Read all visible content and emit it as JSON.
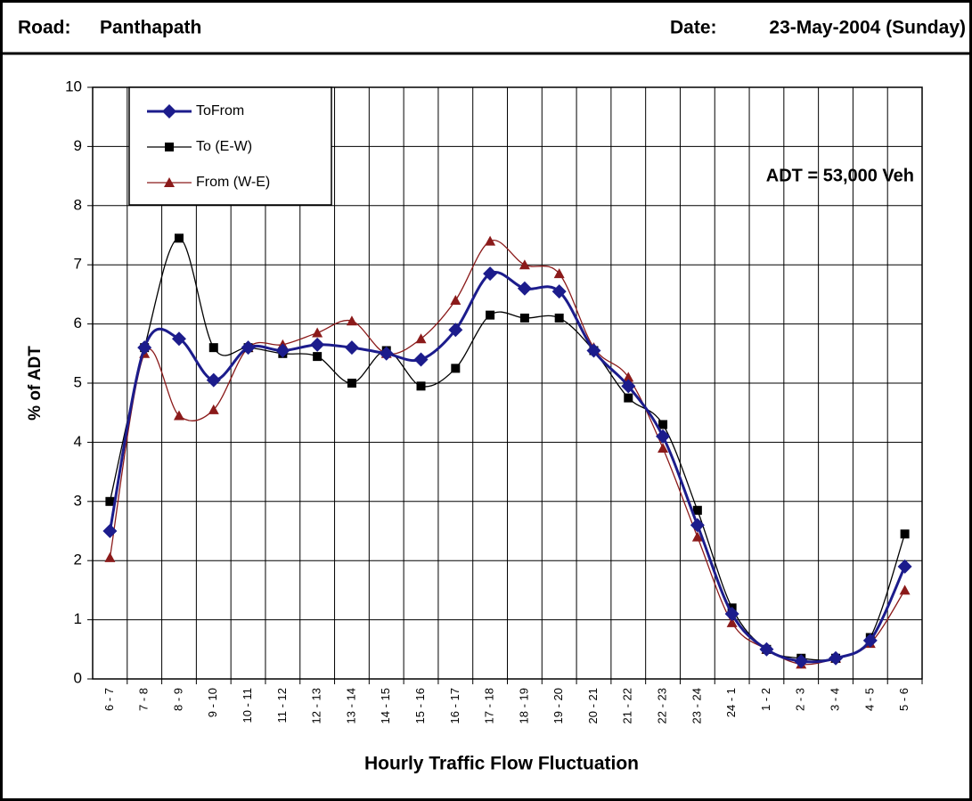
{
  "chart_data": {
    "type": "line",
    "road_label": "Road:",
    "road": "Panthapath",
    "date_label": "Date:",
    "date": "23-May-2004 (Sunday)",
    "annotation": "ADT = 53,000 Veh",
    "x_label": "Hourly Traffic Flow Fluctuation",
    "y_label": "% of ADT",
    "categories": [
      "6 - 7",
      "7 - 8",
      "8 - 9",
      "9 - 10",
      "10 - 11",
      "11 - 12",
      "12 - 13",
      "13 - 14",
      "14 - 15",
      "15 - 16",
      "16 - 17",
      "17 - 18",
      "18 - 19",
      "19 - 20",
      "20 - 21",
      "21 - 22",
      "22 - 23",
      "23 - 24",
      "24 - 1",
      "1 - 2",
      "2 - 3",
      "3 - 4",
      "4 - 5",
      "5 - 6"
    ],
    "series": [
      {
        "name": "ToFrom",
        "color": "#1c1c8c",
        "marker": "diamond",
        "values": [
          2.5,
          5.6,
          5.75,
          5.05,
          5.6,
          5.55,
          5.65,
          5.6,
          5.5,
          5.4,
          5.9,
          6.85,
          6.6,
          6.55,
          5.55,
          4.95,
          4.1,
          2.6,
          1.1,
          0.5,
          0.3,
          0.35,
          0.65,
          1.9
        ]
      },
      {
        "name": "To (E-W)",
        "color": "#000000",
        "marker": "square",
        "values": [
          3.0,
          5.6,
          7.45,
          5.6,
          5.6,
          5.5,
          5.45,
          5.0,
          5.55,
          4.95,
          5.25,
          6.15,
          6.1,
          6.1,
          5.55,
          4.75,
          4.3,
          2.85,
          1.2,
          0.5,
          0.35,
          0.35,
          0.7,
          2.45
        ]
      },
      {
        "name": "From (W-E)",
        "color": "#8b1a1a",
        "marker": "triangle",
        "values": [
          2.05,
          5.5,
          4.45,
          4.55,
          5.6,
          5.65,
          5.85,
          6.05,
          5.5,
          5.75,
          6.4,
          7.4,
          7.0,
          6.85,
          5.6,
          5.1,
          3.9,
          2.4,
          0.95,
          0.5,
          0.25,
          0.35,
          0.6,
          1.5
        ]
      }
    ],
    "ylim": [
      0,
      10
    ],
    "yticks": [
      0,
      1,
      2,
      3,
      4,
      5,
      6,
      7,
      8,
      9,
      10
    ],
    "grid": true,
    "legend": "upper left"
  }
}
